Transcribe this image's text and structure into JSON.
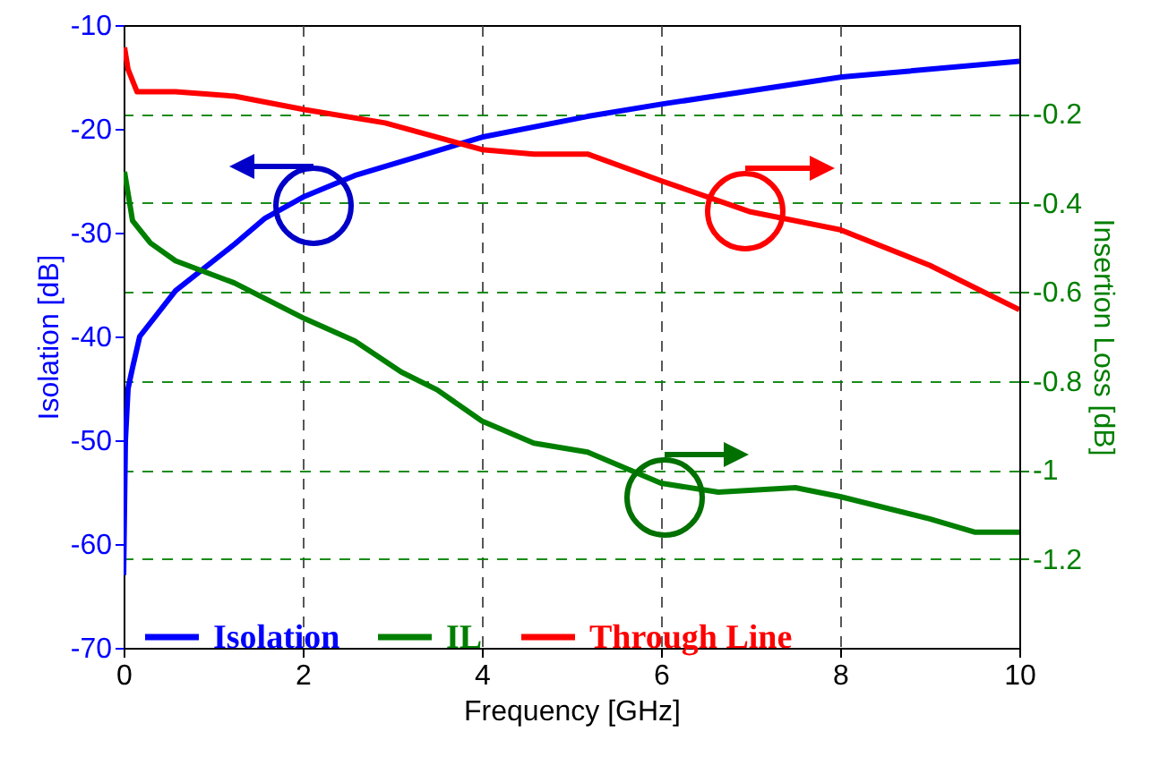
{
  "chart_data": {
    "type": "line",
    "xlabel": "Frequency [GHz]",
    "ylabel": "Isolation [dB]",
    "y2label": "Insertion Loss [dB]",
    "xlim": [
      0,
      10
    ],
    "xticks": [
      0,
      2,
      4,
      6,
      8,
      10
    ],
    "ylim": [
      -70,
      -10
    ],
    "yticks": [
      {
        "value": -70,
        "label": "-70"
      },
      {
        "value": -60,
        "label": "-60"
      },
      {
        "value": -50,
        "label": "-50"
      },
      {
        "value": -40,
        "label": "-40"
      },
      {
        "value": -30,
        "label": "-30"
      },
      {
        "value": -20,
        "label": "-20"
      },
      {
        "value": -10,
        "label": "-10"
      }
    ],
    "y2lim": [
      -1.4,
      0
    ],
    "y2ticks": [
      {
        "value": -1.2,
        "label": "-1.2"
      },
      {
        "value": -1,
        "label": "-1"
      },
      {
        "value": -0.8,
        "label": "-0.8"
      },
      {
        "value": -0.6,
        "label": "-0.6"
      },
      {
        "value": -0.4,
        "label": "-0.4"
      },
      {
        "value": -0.2,
        "label": "-0.2"
      }
    ],
    "grid": true,
    "legend": "bottom",
    "line_style": "solid",
    "marker": "none",
    "series": [
      {
        "name": "Isolation",
        "color": "#0000ff",
        "x": [
          0,
          0.02,
          0.05,
          0.1,
          0.18,
          0.58,
          1.24,
          1.58,
          2.02,
          2.58,
          3.24,
          4.0,
          5.18,
          6.02,
          8.02,
          10
        ],
        "values": [
          -63,
          -50,
          -45,
          -43,
          -40,
          -35.6,
          -31.1,
          -28.6,
          -26.5,
          -24.5,
          -22.8,
          -20.8,
          -18.8,
          -17.6,
          -15.0,
          -13.5
        ]
      },
      {
        "name": "IL",
        "color": "#007f00",
        "axis": "y2",
        "x": [
          0.01,
          0.1,
          0.3,
          0.58,
          1.24,
          2.02,
          2.58,
          3.1,
          3.5,
          4.0,
          4.58,
          5.18,
          6.0,
          6.64,
          7.5,
          8.0,
          9.0,
          9.5,
          10
        ],
        "values": [
          -0.33,
          -0.44,
          -0.49,
          -0.53,
          -0.58,
          -0.66,
          -0.71,
          -0.78,
          -0.82,
          -0.89,
          -0.94,
          -0.96,
          -1.03,
          -1.05,
          -1.04,
          -1.06,
          -1.11,
          -1.14,
          -1.14
        ]
      },
      {
        "name": "Through Line",
        "color": "#ff0000",
        "axis": "y2",
        "x": [
          0.01,
          0.05,
          0.15,
          0.58,
          1.24,
          2.02,
          2.92,
          4.0,
          4.58,
          5.18,
          6.0,
          7.0,
          8.0,
          9.0,
          10
        ],
        "values": [
          -0.05,
          -0.1,
          -0.15,
          -0.15,
          -0.16,
          -0.19,
          -0.22,
          -0.28,
          -0.29,
          -0.29,
          -0.35,
          -0.42,
          -0.46,
          -0.54,
          -0.64
        ]
      }
    ]
  }
}
